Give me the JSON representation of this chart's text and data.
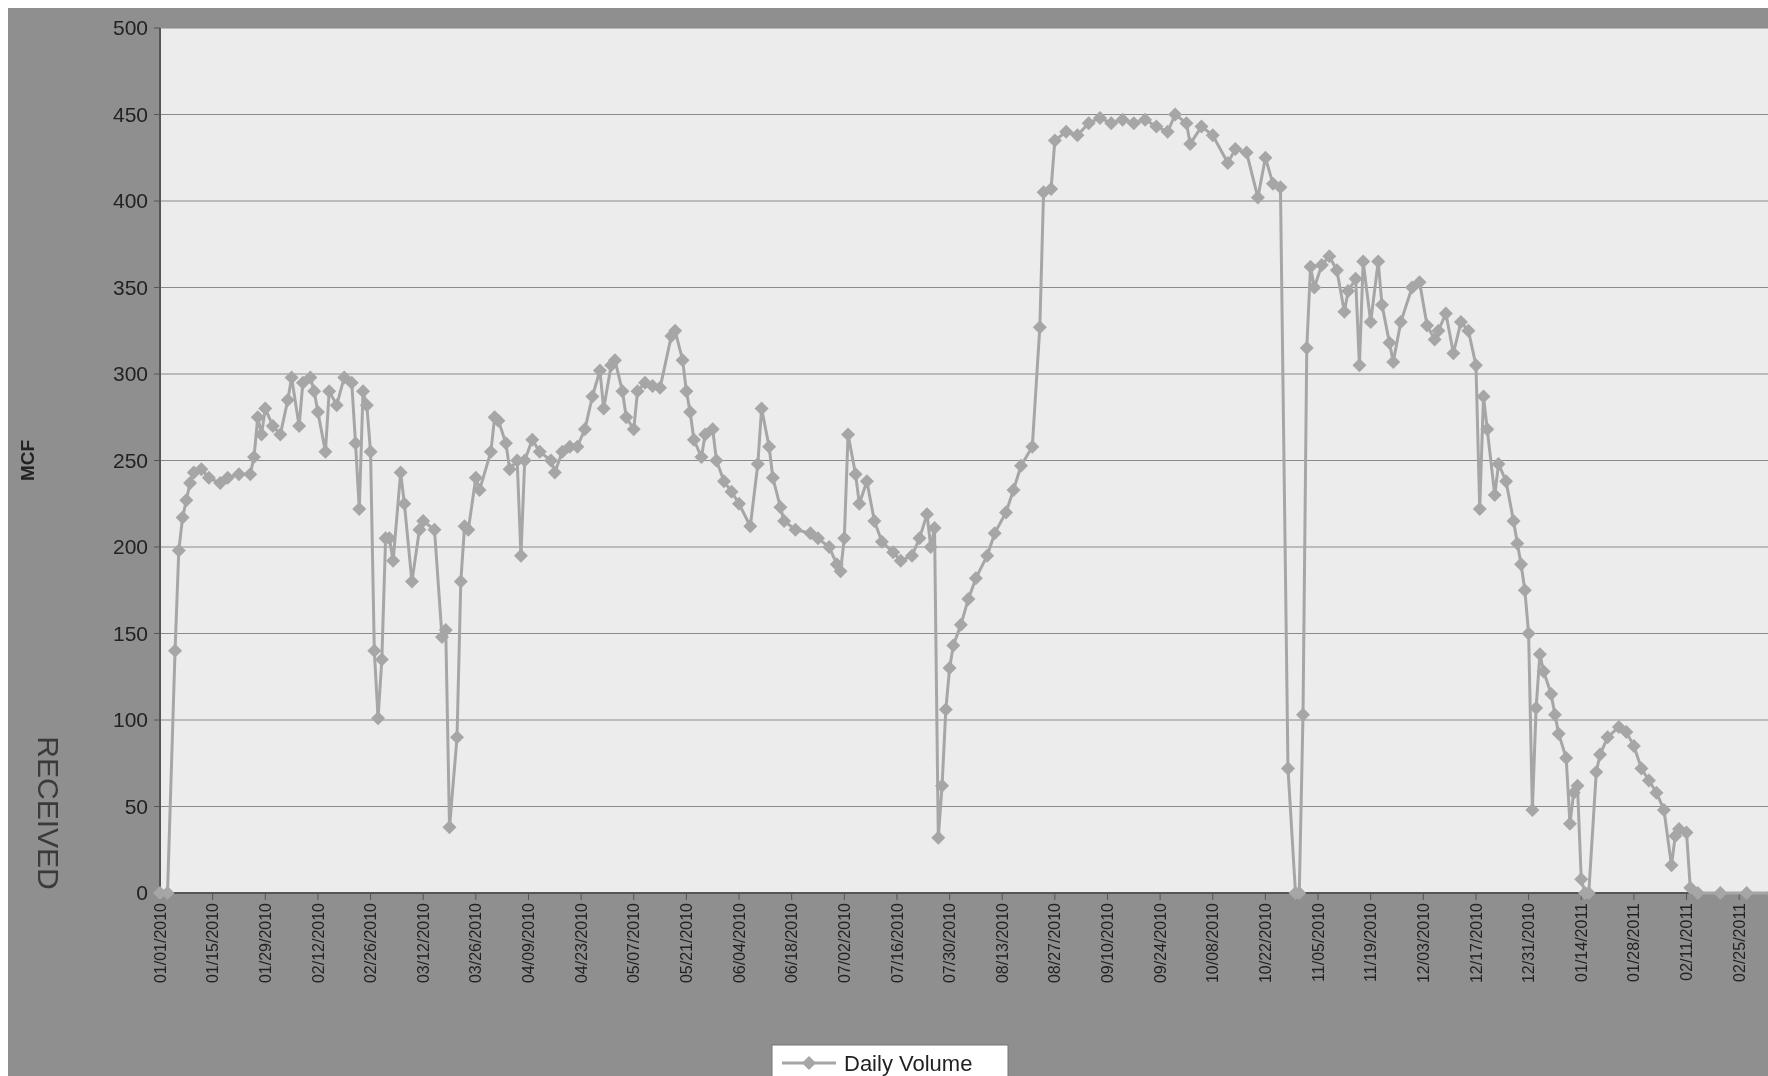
{
  "chart_data": {
    "type": "line",
    "ylabel": "MCF",
    "annotations": [
      "RECEIVED"
    ],
    "legend": "bottom",
    "grid": "y",
    "marker": "diamond",
    "line_style": "solid",
    "ylim": [
      0,
      500
    ],
    "yticks": [
      0,
      50,
      100,
      150,
      200,
      250,
      300,
      350,
      400,
      450,
      500
    ],
    "xlim": [
      "2010-01-01",
      "2011-03-06"
    ],
    "xticks": [
      {
        "value": "2010-01-01",
        "label": "01/01/2010"
      },
      {
        "value": "2010-01-15",
        "label": "01/15/2010"
      },
      {
        "value": "2010-01-29",
        "label": "01/29/2010"
      },
      {
        "value": "2010-02-12",
        "label": "02/12/2010"
      },
      {
        "value": "2010-02-26",
        "label": "02/26/2010"
      },
      {
        "value": "2010-03-12",
        "label": "03/12/2010"
      },
      {
        "value": "2010-03-26",
        "label": "03/26/2010"
      },
      {
        "value": "2010-04-09",
        "label": "04/09/2010"
      },
      {
        "value": "2010-04-23",
        "label": "04/23/2010"
      },
      {
        "value": "2010-05-07",
        "label": "05/07/2010"
      },
      {
        "value": "2010-05-21",
        "label": "05/21/2010"
      },
      {
        "value": "2010-06-04",
        "label": "06/04/2010"
      },
      {
        "value": "2010-06-18",
        "label": "06/18/2010"
      },
      {
        "value": "2010-07-02",
        "label": "07/02/2010"
      },
      {
        "value": "2010-07-16",
        "label": "07/16/2010"
      },
      {
        "value": "2010-07-30",
        "label": "07/30/2010"
      },
      {
        "value": "2010-08-13",
        "label": "08/13/2010"
      },
      {
        "value": "2010-08-27",
        "label": "08/27/2010"
      },
      {
        "value": "2010-09-10",
        "label": "09/10/2010"
      },
      {
        "value": "2010-09-24",
        "label": "09/24/2010"
      },
      {
        "value": "2010-10-08",
        "label": "10/08/2010"
      },
      {
        "value": "2010-10-22",
        "label": "10/22/2010"
      },
      {
        "value": "2010-11-05",
        "label": "11/05/2010"
      },
      {
        "value": "2010-11-19",
        "label": "11/19/2010"
      },
      {
        "value": "2010-12-03",
        "label": "12/03/2010"
      },
      {
        "value": "2010-12-17",
        "label": "12/17/2010"
      },
      {
        "value": "2010-12-31",
        "label": "12/31/2010"
      },
      {
        "value": "2011-01-14",
        "label": "01/14/2011"
      },
      {
        "value": "2011-01-28",
        "label": "01/28/2011"
      },
      {
        "value": "2011-02-11",
        "label": "02/11/2011"
      },
      {
        "value": "2011-02-25",
        "label": "02/25/2011"
      }
    ],
    "x": [
      "2010-01-01",
      "2010-01-03",
      "2010-01-05",
      "2010-01-06",
      "2010-01-07",
      "2010-01-08",
      "2010-01-09",
      "2010-01-10",
      "2010-01-12",
      "2010-01-14",
      "2010-01-17",
      "2010-01-19",
      "2010-01-22",
      "2010-01-25",
      "2010-01-26",
      "2010-01-27",
      "2010-01-28",
      "2010-01-29",
      "2010-01-31",
      "2010-02-02",
      "2010-02-04",
      "2010-02-05",
      "2010-02-07",
      "2010-02-08",
      "2010-02-10",
      "2010-02-11",
      "2010-02-12",
      "2010-02-14",
      "2010-02-15",
      "2010-02-17",
      "2010-02-19",
      "2010-02-21",
      "2010-02-22",
      "2010-02-23",
      "2010-02-24",
      "2010-02-25",
      "2010-02-26",
      "2010-02-27",
      "2010-02-28",
      "2010-03-01",
      "2010-03-02",
      "2010-03-03",
      "2010-03-04",
      "2010-03-06",
      "2010-03-07",
      "2010-03-09",
      "2010-03-11",
      "2010-03-12",
      "2010-03-15",
      "2010-03-17",
      "2010-03-18",
      "2010-03-19",
      "2010-03-21",
      "2010-03-22",
      "2010-03-23",
      "2010-03-24",
      "2010-03-26",
      "2010-03-27",
      "2010-03-30",
      "2010-03-31",
      "2010-04-01",
      "2010-04-03",
      "2010-04-04",
      "2010-04-06",
      "2010-04-07",
      "2010-04-08",
      "2010-04-10",
      "2010-04-12",
      "2010-04-15",
      "2010-04-16",
      "2010-04-18",
      "2010-04-20",
      "2010-04-22",
      "2010-04-24",
      "2010-04-26",
      "2010-04-28",
      "2010-04-29",
      "2010-05-01",
      "2010-05-02",
      "2010-05-04",
      "2010-05-05",
      "2010-05-07",
      "2010-05-08",
      "2010-05-10",
      "2010-05-12",
      "2010-05-14",
      "2010-05-17",
      "2010-05-18",
      "2010-05-20",
      "2010-05-21",
      "2010-05-22",
      "2010-05-23",
      "2010-05-25",
      "2010-05-26",
      "2010-05-28",
      "2010-05-29",
      "2010-05-31",
      "2010-06-02",
      "2010-06-04",
      "2010-06-07",
      "2010-06-09",
      "2010-06-10",
      "2010-06-12",
      "2010-06-13",
      "2010-06-15",
      "2010-06-16",
      "2010-06-19",
      "2010-06-23",
      "2010-06-25",
      "2010-06-28",
      "2010-06-30",
      "2010-07-01",
      "2010-07-02",
      "2010-07-03",
      "2010-07-05",
      "2010-07-06",
      "2010-07-08",
      "2010-07-10",
      "2010-07-12",
      "2010-07-15",
      "2010-07-17",
      "2010-07-20",
      "2010-07-22",
      "2010-07-24",
      "2010-07-25",
      "2010-07-26",
      "2010-07-27",
      "2010-07-28",
      "2010-07-29",
      "2010-07-30",
      "2010-07-31",
      "2010-08-02",
      "2010-08-04",
      "2010-08-06",
      "2010-08-09",
      "2010-08-11",
      "2010-08-14",
      "2010-08-16",
      "2010-08-18",
      "2010-08-21",
      "2010-08-23",
      "2010-08-24",
      "2010-08-26",
      "2010-08-27",
      "2010-08-30",
      "2010-09-02",
      "2010-09-05",
      "2010-09-08",
      "2010-09-11",
      "2010-09-14",
      "2010-09-17",
      "2010-09-20",
      "2010-09-23",
      "2010-09-26",
      "2010-09-28",
      "2010-10-01",
      "2010-10-02",
      "2010-10-05",
      "2010-10-08",
      "2010-10-12",
      "2010-10-14",
      "2010-10-17",
      "2010-10-20",
      "2010-10-22",
      "2010-10-24",
      "2010-10-26",
      "2010-10-28",
      "2010-10-30",
      "2010-10-31",
      "2010-11-01",
      "2010-11-02",
      "2010-11-03",
      "2010-11-04",
      "2010-11-06",
      "2010-11-08",
      "2010-11-10",
      "2010-11-12",
      "2010-11-13",
      "2010-11-15",
      "2010-11-16",
      "2010-11-17",
      "2010-11-19",
      "2010-11-21",
      "2010-11-22",
      "2010-11-24",
      "2010-11-25",
      "2010-11-27",
      "2010-11-30",
      "2010-12-02",
      "2010-12-04",
      "2010-12-06",
      "2010-12-07",
      "2010-12-09",
      "2010-12-11",
      "2010-12-13",
      "2010-12-15",
      "2010-12-17",
      "2010-12-18",
      "2010-12-19",
      "2010-12-20",
      "2010-12-22",
      "2010-12-23",
      "2010-12-25",
      "2010-12-27",
      "2010-12-28",
      "2010-12-29",
      "2010-12-30",
      "2010-12-31",
      "2011-01-01",
      "2011-01-02",
      "2011-01-03",
      "2011-01-04",
      "2011-01-06",
      "2011-01-07",
      "2011-01-08",
      "2011-01-10",
      "2011-01-11",
      "2011-01-12",
      "2011-01-13",
      "2011-01-14",
      "2011-01-15",
      "2011-01-16",
      "2011-01-18",
      "2011-01-19",
      "2011-01-21",
      "2011-01-24",
      "2011-01-26",
      "2011-01-28",
      "2011-01-30",
      "2011-02-01",
      "2011-02-03",
      "2011-02-05",
      "2011-02-07",
      "2011-02-08",
      "2011-02-09",
      "2011-02-11",
      "2011-02-12",
      "2011-02-14",
      "2011-02-20",
      "2011-02-27",
      "2011-03-06"
    ],
    "series": [
      {
        "name": "Daily Volume",
        "color": "#a6a6a6",
        "values": [
          0,
          0,
          140,
          198,
          217,
          227,
          237,
          243,
          245,
          240,
          237,
          240,
          242,
          242,
          252,
          275,
          265,
          280,
          270,
          265,
          285,
          298,
          270,
          295,
          298,
          290,
          278,
          255,
          290,
          282,
          298,
          295,
          260,
          222,
          290,
          282,
          255,
          140,
          101,
          135,
          205,
          205,
          192,
          243,
          225,
          180,
          210,
          215,
          210,
          148,
          152,
          38,
          90,
          180,
          212,
          210,
          240,
          233,
          255,
          275,
          273,
          260,
          245,
          250,
          195,
          250,
          262,
          255,
          250,
          243,
          255,
          258,
          258,
          268,
          287,
          302,
          280,
          305,
          308,
          290,
          275,
          268,
          290,
          295,
          293,
          292,
          322,
          325,
          308,
          290,
          278,
          262,
          252,
          265,
          268,
          250,
          238,
          232,
          225,
          212,
          248,
          280,
          258,
          240,
          223,
          215,
          210,
          208,
          205,
          200,
          190,
          186,
          205,
          265,
          242,
          225,
          238,
          215,
          203,
          197,
          192,
          195,
          205,
          219,
          200,
          211,
          32,
          62,
          106,
          130,
          143,
          155,
          170,
          182,
          195,
          208,
          220,
          233,
          247,
          258,
          327,
          405,
          407,
          435,
          440,
          438,
          445,
          448,
          445,
          447,
          445,
          447,
          443,
          440,
          450,
          445,
          433,
          443,
          438,
          422,
          430,
          428,
          402,
          425,
          410,
          408,
          72,
          0,
          0,
          103,
          315,
          362,
          350,
          363,
          368,
          360,
          336,
          348,
          355,
          305,
          365,
          330,
          365,
          340,
          318,
          307,
          330,
          350,
          353,
          328,
          320,
          325,
          335,
          312,
          330,
          325,
          305,
          222,
          287,
          268,
          230,
          248,
          238,
          215,
          202,
          190,
          175,
          150,
          48,
          107,
          138,
          128,
          115,
          103,
          92,
          78,
          40,
          58,
          62,
          8,
          0,
          0,
          70,
          80,
          90,
          96,
          93,
          85,
          72,
          65,
          58,
          48,
          16,
          33,
          37,
          35,
          3,
          0,
          0,
          0,
          0
        ]
      }
    ]
  }
}
